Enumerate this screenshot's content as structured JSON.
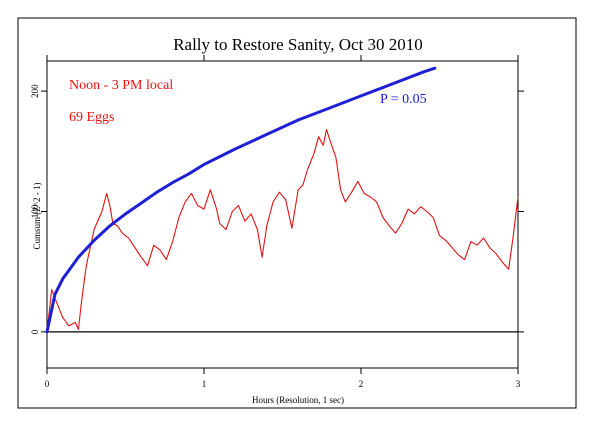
{
  "chart_data": {
    "type": "line",
    "title": "Rally to Restore Sanity, Oct 30 2010",
    "xlabel": "Hours (Resolution, 1 sec)",
    "ylabel": "Cumsum (Z^2 - 1)",
    "xlim": [
      0,
      3
    ],
    "ylim": [
      -30,
      225
    ],
    "x_ticks": [
      "0",
      "1",
      "2",
      "3"
    ],
    "y_ticks": [
      "0",
      "100",
      "200"
    ],
    "annotations": {
      "time_window": "Noon - 3 PM local",
      "eggs": "69 Eggs",
      "probability": "P = 0.05"
    },
    "colors": {
      "series": "#e11111",
      "envelope": "#1f1fd6",
      "zero_line": "#000000"
    },
    "series": [
      {
        "color": "#e11111",
        "x": [
          0,
          0.03,
          0.06,
          0.1,
          0.14,
          0.18,
          0.2,
          0.22,
          0.25,
          0.3,
          0.35,
          0.38,
          0.4,
          0.42,
          0.45,
          0.48,
          0.52,
          0.56,
          0.6,
          0.64,
          0.68,
          0.72,
          0.76,
          0.8,
          0.84,
          0.88,
          0.92,
          0.96,
          1.0,
          1.04,
          1.08,
          1.1,
          1.14,
          1.18,
          1.22,
          1.26,
          1.3,
          1.34,
          1.37,
          1.4,
          1.44,
          1.48,
          1.52,
          1.56,
          1.6,
          1.63,
          1.66,
          1.7,
          1.73,
          1.76,
          1.78,
          1.81,
          1.84,
          1.87,
          1.9,
          1.94,
          1.98,
          2.02,
          2.06,
          2.1,
          2.14,
          2.18,
          2.22,
          2.26,
          2.3,
          2.34,
          2.38,
          2.42,
          2.46,
          2.5,
          2.54,
          2.58,
          2.62,
          2.66,
          2.7,
          2.74,
          2.78,
          2.82,
          2.86,
          2.9,
          2.94,
          2.97,
          3.0
        ],
        "y": [
          0,
          35,
          25,
          12,
          5,
          8,
          2,
          25,
          55,
          85,
          100,
          115,
          105,
          90,
          88,
          82,
          78,
          70,
          62,
          55,
          72,
          68,
          60,
          75,
          95,
          108,
          115,
          105,
          102,
          118,
          102,
          90,
          85,
          100,
          105,
          92,
          98,
          85,
          62,
          88,
          108,
          116,
          110,
          86,
          118,
          122,
          135,
          148,
          162,
          155,
          168,
          156,
          145,
          118,
          108,
          116,
          125,
          115,
          112,
          108,
          95,
          88,
          82,
          90,
          102,
          98,
          104,
          100,
          95,
          80,
          76,
          70,
          64,
          60,
          75,
          72,
          78,
          70,
          65,
          58,
          52,
          80,
          112
        ]
      },
      {
        "color": "#1f1fd6",
        "x": [
          0,
          0.05,
          0.1,
          0.2,
          0.3,
          0.4,
          0.5,
          0.6,
          0.7,
          0.8,
          0.9,
          1.0,
          1.2,
          1.4,
          1.6,
          1.8,
          2.0,
          2.2,
          2.4,
          2.47
        ],
        "y": [
          0,
          31,
          44,
          62,
          76,
          88,
          98,
          107,
          116,
          124,
          131,
          139,
          152,
          164,
          176,
          186,
          196,
          206,
          216,
          219
        ]
      }
    ]
  }
}
